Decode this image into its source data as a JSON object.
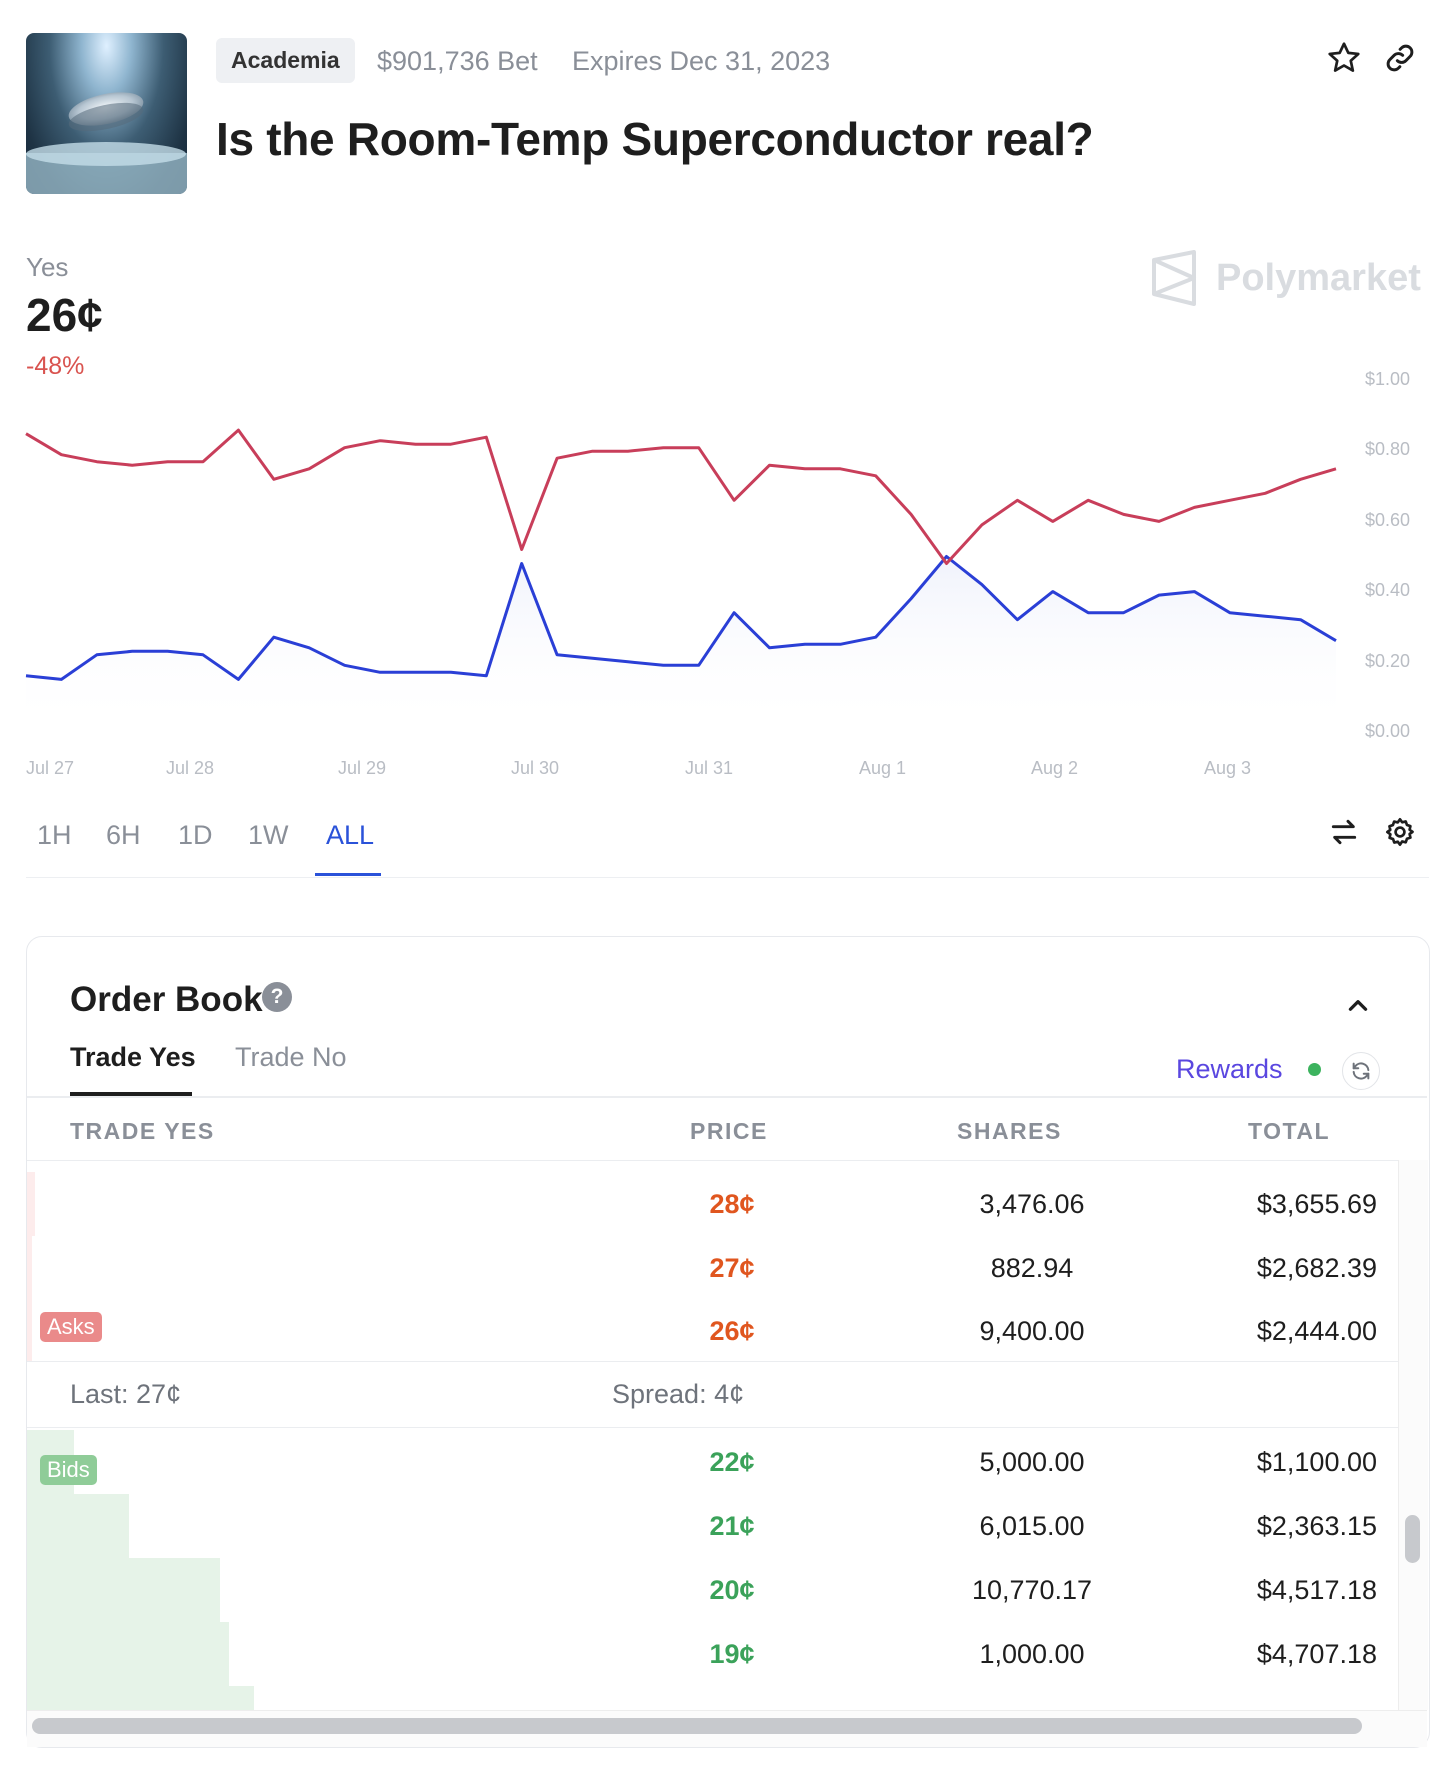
{
  "header": {
    "category": "Academia",
    "volume": "$901,736 Bet",
    "expires": "Expires Dec 31, 2023",
    "title": "Is the Room-Temp Superconductor real?",
    "icons": [
      "star-icon",
      "link-icon"
    ]
  },
  "price": {
    "outcome": "Yes",
    "value": "26¢",
    "change": "-48%"
  },
  "brand": "Polymarket",
  "chart": {
    "y_ticks": [
      "$1.00",
      "$0.80",
      "$0.60",
      "$0.40",
      "$0.20",
      "$0.00"
    ],
    "x_ticks": [
      "Jul 27",
      "Jul 28",
      "Jul 29",
      "Jul 30",
      "Jul 31",
      "Aug 1",
      "Aug 2",
      "Aug 3"
    ],
    "colors": {
      "yes": "#2a3fd6",
      "no": "#c83e5a"
    }
  },
  "chart_data": {
    "type": "line",
    "x": [
      "Jul 27",
      "Jul 27",
      "Jul 27",
      "Jul 28",
      "Jul 28",
      "Jul 28",
      "Jul 28",
      "Jul 28",
      "Jul 28",
      "Jul 29",
      "Jul 29",
      "Jul 29",
      "Jul 30",
      "Jul 30",
      "Jul 30",
      "Jul 30",
      "Jul 30",
      "Jul 31",
      "Jul 31",
      "Jul 31",
      "Jul 31",
      "Jul 31",
      "Jul 31",
      "Aug 1",
      "Aug 1",
      "Aug 1",
      "Aug 1",
      "Aug 2",
      "Aug 2",
      "Aug 2",
      "Aug 2",
      "Aug 2",
      "Aug 2",
      "Aug 3",
      "Aug 3",
      "Aug 3",
      "Aug 3",
      "Aug 3"
    ],
    "series": [
      {
        "name": "Yes",
        "values": [
          0.16,
          0.15,
          0.22,
          0.23,
          0.23,
          0.22,
          0.15,
          0.27,
          0.24,
          0.19,
          0.17,
          0.17,
          0.17,
          0.16,
          0.48,
          0.22,
          0.21,
          0.2,
          0.19,
          0.19,
          0.34,
          0.24,
          0.25,
          0.25,
          0.27,
          0.38,
          0.5,
          0.42,
          0.32,
          0.4,
          0.34,
          0.34,
          0.39,
          0.4,
          0.34,
          0.33,
          0.32,
          0.26
        ]
      },
      {
        "name": "No",
        "values": [
          0.85,
          0.79,
          0.77,
          0.76,
          0.77,
          0.77,
          0.86,
          0.72,
          0.75,
          0.81,
          0.83,
          0.82,
          0.82,
          0.84,
          0.52,
          0.78,
          0.8,
          0.8,
          0.81,
          0.81,
          0.66,
          0.76,
          0.75,
          0.75,
          0.73,
          0.62,
          0.48,
          0.59,
          0.66,
          0.6,
          0.66,
          0.62,
          0.6,
          0.64,
          0.66,
          0.68,
          0.72,
          0.75
        ]
      }
    ],
    "ylim": [
      0,
      1
    ],
    "y_ticks": [
      "$1.00",
      "$0.80",
      "$0.60",
      "$0.40",
      "$0.20",
      "$0.00"
    ]
  },
  "time_ranges": [
    "1H",
    "6H",
    "1D",
    "1W",
    "ALL"
  ],
  "active_range": "ALL",
  "order_book": {
    "title": "Order Book",
    "help": "?",
    "tabs": [
      "Trade Yes",
      "Trade No"
    ],
    "rewards_label": "Rewards",
    "columns": [
      "TRADE YES",
      "PRICE",
      "SHARES",
      "TOTAL"
    ],
    "asks_label": "Asks",
    "bids_label": "Bids",
    "asks": [
      {
        "price": "28¢",
        "shares": "3,476.06",
        "total": "$3,655.69",
        "depth": 0.006
      },
      {
        "price": "27¢",
        "shares": "882.94",
        "total": "$2,682.39",
        "depth": 0.004
      },
      {
        "price": "26¢",
        "shares": "9,400.00",
        "total": "$2,444.00",
        "depth": 0.004
      }
    ],
    "last": "Last: 27¢",
    "spread": "Spread: 4¢",
    "bids": [
      {
        "price": "22¢",
        "shares": "5,000.00",
        "total": "$1,100.00",
        "depth": 0.034
      },
      {
        "price": "21¢",
        "shares": "6,015.00",
        "total": "$2,363.15",
        "depth": 0.074
      },
      {
        "price": "20¢",
        "shares": "10,770.17",
        "total": "$4,517.18",
        "depth": 0.141
      },
      {
        "price": "19¢",
        "shares": "1,000.00",
        "total": "$4,707.18",
        "depth": 0.147
      }
    ]
  }
}
